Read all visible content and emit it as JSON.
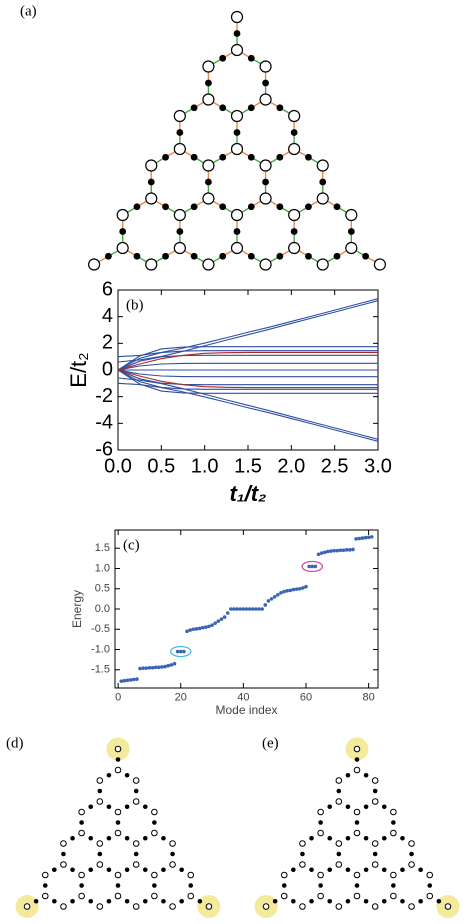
{
  "chart_data": [
    {
      "type": "line",
      "panel_label": "(b)",
      "xlabel": "t₁/t₂",
      "ylabel": "E/t₂",
      "x": [
        0,
        0.25,
        0.5,
        0.75,
        1,
        1.25,
        1.5,
        1.75,
        2,
        2.25,
        2.5,
        2.75,
        3
      ],
      "xlim": [
        0,
        3
      ],
      "ylim": [
        -6,
        6
      ],
      "xticks": [
        {
          "value": 0,
          "label": "0.0"
        },
        0.5,
        {
          "value": 1,
          "label": "1.0"
        },
        1.5,
        {
          "value": 2,
          "label": "2.0"
        },
        2.5,
        {
          "value": 3,
          "label": "3.0"
        }
      ],
      "yticks": [
        6,
        4,
        2,
        0,
        -2,
        -4,
        -6
      ],
      "series": [
        {
          "color": "#2e4fa0",
          "values": [
            1,
            1.09,
            1.32,
            1.64,
            2.02,
            2.42,
            2.83,
            3.22,
            3.64,
            4.06,
            4.49,
            4.92,
            5.35
          ]
        },
        {
          "color": "#2e4fa0",
          "values": [
            0.6,
            0.76,
            1.02,
            1.4,
            1.82,
            2.24,
            2.65,
            3.06,
            3.49,
            3.92,
            4.34,
            4.77,
            5.2
          ]
        },
        {
          "color": "#2e4fa0",
          "values": [
            0,
            1.05,
            1.58,
            1.72,
            1.75,
            1.75,
            1.75,
            1.75,
            1.75,
            1.75,
            1.75,
            1.75,
            1.75
          ]
        },
        {
          "color": "#2e4fa0",
          "values": [
            0,
            0.87,
            1.31,
            1.42,
            1.45,
            1.45,
            1.45,
            1.45,
            1.45,
            1.45,
            1.45,
            1.45,
            1.45
          ]
        },
        {
          "color": "#2e4fa0",
          "values": [
            0,
            0.66,
            0.99,
            1.08,
            1.1,
            1.1,
            1.1,
            1.1,
            1.1,
            1.1,
            1.1,
            1.1,
            1.1
          ]
        },
        {
          "color": "#2e4fa0",
          "values": [
            0,
            0.3,
            0.45,
            0.49,
            0.5,
            0.5,
            0.5,
            0.5,
            0.5,
            0.5,
            0.5,
            0.5,
            0.5
          ]
        },
        {
          "color": "#2e4fa0",
          "values": [
            0,
            0,
            0,
            0,
            0,
            0,
            0,
            0,
            0,
            0,
            0,
            0,
            0
          ]
        },
        {
          "color": "#2e4fa0",
          "values": [
            0,
            -0.3,
            -0.45,
            -0.49,
            -0.5,
            -0.5,
            -0.5,
            -0.5,
            -0.5,
            -0.5,
            -0.5,
            -0.5,
            -0.5
          ]
        },
        {
          "color": "#2e4fa0",
          "values": [
            0,
            -0.66,
            -0.99,
            -1.08,
            -1.1,
            -1.1,
            -1.1,
            -1.1,
            -1.1,
            -1.1,
            -1.1,
            -1.1,
            -1.1
          ]
        },
        {
          "color": "#2e4fa0",
          "values": [
            0,
            -0.87,
            -1.31,
            -1.42,
            -1.45,
            -1.45,
            -1.45,
            -1.45,
            -1.45,
            -1.45,
            -1.45,
            -1.45,
            -1.45
          ]
        },
        {
          "color": "#2e4fa0",
          "values": [
            0,
            -1.05,
            -1.58,
            -1.72,
            -1.75,
            -1.75,
            -1.75,
            -1.75,
            -1.75,
            -1.75,
            -1.75,
            -1.75,
            -1.75
          ]
        },
        {
          "color": "#2e4fa0",
          "values": [
            -0.6,
            -0.76,
            -1.02,
            -1.4,
            -1.82,
            -2.24,
            -2.65,
            -3.06,
            -3.49,
            -3.92,
            -4.34,
            -4.77,
            -5.2
          ]
        },
        {
          "color": "#2e4fa0",
          "values": [
            -1,
            -1.09,
            -1.32,
            -1.64,
            -2.02,
            -2.42,
            -2.83,
            -3.22,
            -3.64,
            -4.06,
            -4.49,
            -4.92,
            -5.35
          ]
        },
        {
          "color": "#b02828",
          "values": [
            0,
            0.45,
            0.85,
            1.1,
            1.25,
            1.3,
            1.32,
            1.32,
            1.32,
            1.32,
            1.32,
            1.32,
            1.32
          ]
        },
        {
          "color": "#b02828",
          "values": [
            0,
            -0.45,
            -0.85,
            -1.1,
            -1.25,
            -1.3,
            -1.32,
            -1.32,
            -1.32,
            -1.32,
            -1.32,
            -1.32,
            -1.32
          ]
        }
      ]
    },
    {
      "type": "scatter",
      "panel_label": "(c)",
      "xlabel": "Mode index",
      "ylabel": "Energy",
      "xlim": [
        -1,
        83
      ],
      "ylim": [
        -1.95,
        1.95
      ],
      "xticks": [
        0,
        20,
        40,
        60,
        80
      ],
      "yticks": [
        -1.5,
        {
          "value": -1,
          "label": "-1.0"
        },
        -0.5,
        {
          "value": 0,
          "label": "0.0"
        },
        0.5,
        {
          "value": 1,
          "label": "1.0"
        },
        1.5
      ],
      "x": [
        1,
        2,
        3,
        4,
        5,
        6,
        7,
        8,
        9,
        10,
        11,
        12,
        13,
        14,
        15,
        16,
        17,
        18,
        19,
        20,
        21,
        22,
        23,
        24,
        25,
        26,
        27,
        28,
        29,
        30,
        31,
        32,
        33,
        34,
        35,
        36,
        37,
        38,
        39,
        40,
        41,
        42,
        43,
        44,
        45,
        46,
        47,
        48,
        49,
        50,
        51,
        52,
        53,
        54,
        55,
        56,
        57,
        58,
        59,
        60,
        61,
        62,
        63,
        64,
        65,
        66,
        67,
        68,
        69,
        70,
        71,
        72,
        73,
        74,
        75,
        76,
        77,
        78,
        79,
        80,
        81
      ],
      "series": [
        {
          "color": "#3a65b5",
          "values": [
            -1.78,
            -1.77,
            -1.76,
            -1.75,
            -1.74,
            -1.73,
            -1.47,
            -1.46,
            -1.46,
            -1.45,
            -1.45,
            -1.44,
            -1.44,
            -1.43,
            -1.42,
            -1.4,
            -1.38,
            -1.35,
            -1.05,
            -1.05,
            -1.05,
            -0.55,
            -0.52,
            -0.5,
            -0.49,
            -0.48,
            -0.46,
            -0.45,
            -0.43,
            -0.4,
            -0.35,
            -0.3,
            -0.25,
            -0.2,
            -0.1,
            0,
            0,
            0,
            0,
            0,
            0,
            0,
            0,
            0,
            0,
            0,
            0.1,
            0.2,
            0.25,
            0.3,
            0.35,
            0.4,
            0.43,
            0.45,
            0.46,
            0.48,
            0.49,
            0.5,
            0.52,
            0.55,
            1.05,
            1.05,
            1.05,
            1.35,
            1.38,
            1.4,
            1.42,
            1.43,
            1.44,
            1.44,
            1.45,
            1.45,
            1.46,
            1.46,
            1.47,
            1.73,
            1.74,
            1.75,
            1.76,
            1.77,
            1.78
          ]
        }
      ]
    }
  ],
  "diagrams": {
    "a": {
      "label": "(a)"
    },
    "d": {
      "label": "(d)"
    },
    "e": {
      "label": "(e)"
    }
  }
}
